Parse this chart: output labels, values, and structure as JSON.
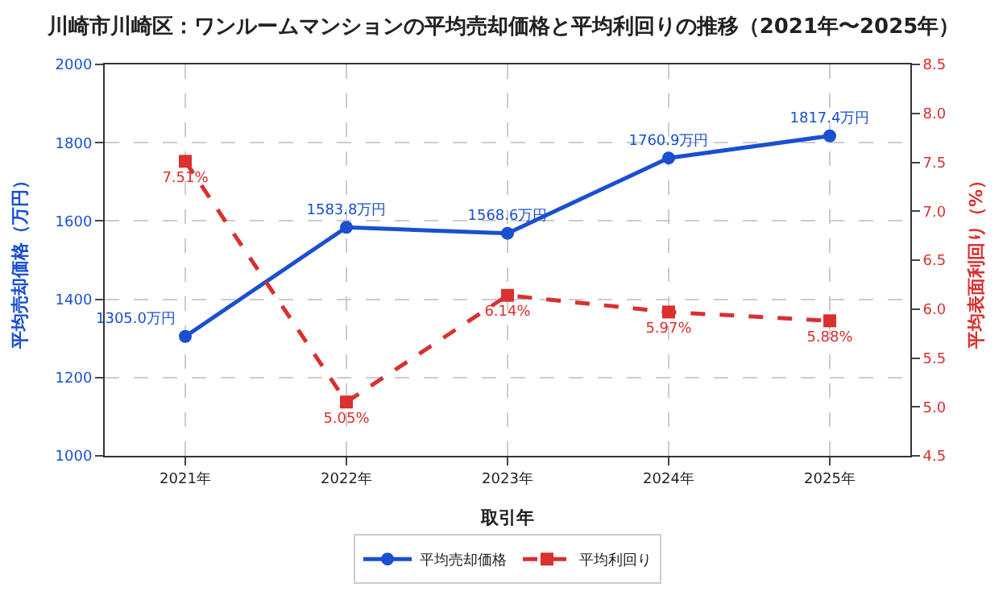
{
  "chart_data": {
    "type": "line",
    "title": "川崎市川崎区：ワンルームマンションの平均売却価格と平均利回りの推移（2021年〜2025年）",
    "xlabel": "取引年",
    "ylabel": "平均売却価格（万円）",
    "y2label": "平均表面利回り（%）",
    "categories": [
      "2021年",
      "2022年",
      "2023年",
      "2024年",
      "2025年"
    ],
    "series": [
      {
        "name": "平均売却価格",
        "color": "#1a4fd0",
        "values": [
          1305.0,
          1583.8,
          1568.6,
          1760.9,
          1817.4
        ],
        "value_labels": [
          "1305.0万円",
          "1583.8万円",
          "1568.6万円",
          "1760.9万円",
          "1817.4万円"
        ],
        "marker": "circle",
        "line_style": "solid"
      },
      {
        "name": "平均利回り",
        "color": "#d93030",
        "axis": "y2",
        "values": [
          7.51,
          5.05,
          6.14,
          5.97,
          5.88
        ],
        "value_labels": [
          "7.51%",
          "5.05%",
          "6.14%",
          "5.97%",
          "5.88%"
        ],
        "marker": "square",
        "line_style": "dashed"
      }
    ],
    "ylim": [
      1000,
      2000
    ],
    "yticks": [
      1000,
      1200,
      1400,
      1600,
      1800,
      2000
    ],
    "y2lim": [
      4.5,
      8.5
    ],
    "y2ticks": [
      4.5,
      {
        "value": 5,
        "label": "5.0"
      },
      5.5,
      {
        "value": 6,
        "label": "6.0"
      },
      6.5,
      {
        "value": 7,
        "label": "7.0"
      },
      7.5,
      {
        "value": 8,
        "label": "8.0"
      },
      8.5
    ],
    "grid": true,
    "legend": "bottom"
  }
}
